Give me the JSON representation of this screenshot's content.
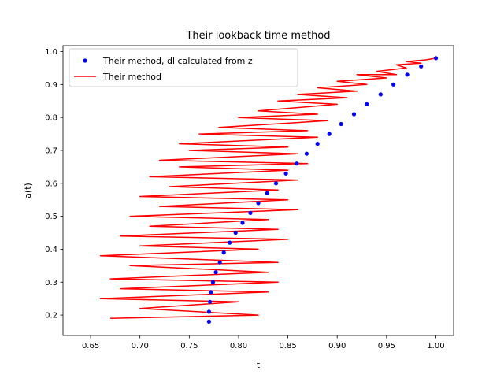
{
  "chart_data": {
    "type": "scatter",
    "title": "Their lookback time method",
    "xlabel": "t",
    "ylabel": "a(t)",
    "xlim": [
      0.622,
      1.018
    ],
    "ylim": [
      0.138,
      1.018
    ],
    "xticks": [
      "0.65",
      "0.70",
      "0.75",
      "0.80",
      "0.85",
      "0.90",
      "0.95",
      "1.00"
    ],
    "yticks": [
      "0.2",
      "0.3",
      "0.4",
      "0.5",
      "0.6",
      "0.7",
      "0.8",
      "0.9",
      "1.0"
    ],
    "grid": false,
    "legend_position": "upper-left",
    "legend": [
      "Their method, dl calculated from z",
      "Their method"
    ],
    "series": [
      {
        "name": "Their method, dl calculated from z",
        "kind": "points",
        "color": "#0000ff",
        "x": [
          0.77,
          0.77,
          0.771,
          0.772,
          0.774,
          0.777,
          0.781,
          0.785,
          0.791,
          0.797,
          0.804,
          0.812,
          0.82,
          0.829,
          0.838,
          0.848,
          0.859,
          0.869,
          0.88,
          0.892,
          0.904,
          0.917,
          0.93,
          0.944,
          0.957,
          0.971,
          0.985,
          1.0
        ],
        "y": [
          0.18,
          0.21,
          0.24,
          0.27,
          0.3,
          0.33,
          0.36,
          0.39,
          0.42,
          0.45,
          0.48,
          0.51,
          0.54,
          0.57,
          0.6,
          0.63,
          0.66,
          0.69,
          0.72,
          0.75,
          0.78,
          0.81,
          0.84,
          0.87,
          0.9,
          0.93,
          0.955,
          0.98
        ]
      },
      {
        "name": "Their method",
        "kind": "line",
        "color": "#ff0000",
        "x": [
          0.67,
          0.82,
          0.7,
          0.8,
          0.66,
          0.83,
          0.68,
          0.84,
          0.67,
          0.83,
          0.69,
          0.84,
          0.66,
          0.82,
          0.7,
          0.85,
          0.68,
          0.84,
          0.71,
          0.83,
          0.69,
          0.86,
          0.72,
          0.85,
          0.7,
          0.84,
          0.73,
          0.86,
          0.71,
          0.85,
          0.74,
          0.87,
          0.72,
          0.86,
          0.75,
          0.85,
          0.74,
          0.88,
          0.76,
          0.87,
          0.78,
          0.89,
          0.8,
          0.88,
          0.82,
          0.9,
          0.84,
          0.91,
          0.86,
          0.92,
          0.88,
          0.93,
          0.9,
          0.95,
          0.92,
          0.96,
          0.94,
          0.97,
          0.96,
          0.985,
          0.97,
          0.99,
          1.0
        ],
        "y": [
          0.19,
          0.2,
          0.22,
          0.24,
          0.25,
          0.27,
          0.28,
          0.3,
          0.31,
          0.33,
          0.35,
          0.36,
          0.38,
          0.4,
          0.41,
          0.43,
          0.44,
          0.46,
          0.47,
          0.49,
          0.5,
          0.52,
          0.53,
          0.55,
          0.56,
          0.58,
          0.59,
          0.61,
          0.62,
          0.64,
          0.65,
          0.66,
          0.67,
          0.69,
          0.7,
          0.71,
          0.72,
          0.74,
          0.75,
          0.76,
          0.77,
          0.79,
          0.8,
          0.81,
          0.82,
          0.84,
          0.85,
          0.86,
          0.87,
          0.88,
          0.89,
          0.9,
          0.91,
          0.92,
          0.93,
          0.93,
          0.94,
          0.95,
          0.96,
          0.965,
          0.97,
          0.975,
          0.98
        ]
      }
    ]
  }
}
